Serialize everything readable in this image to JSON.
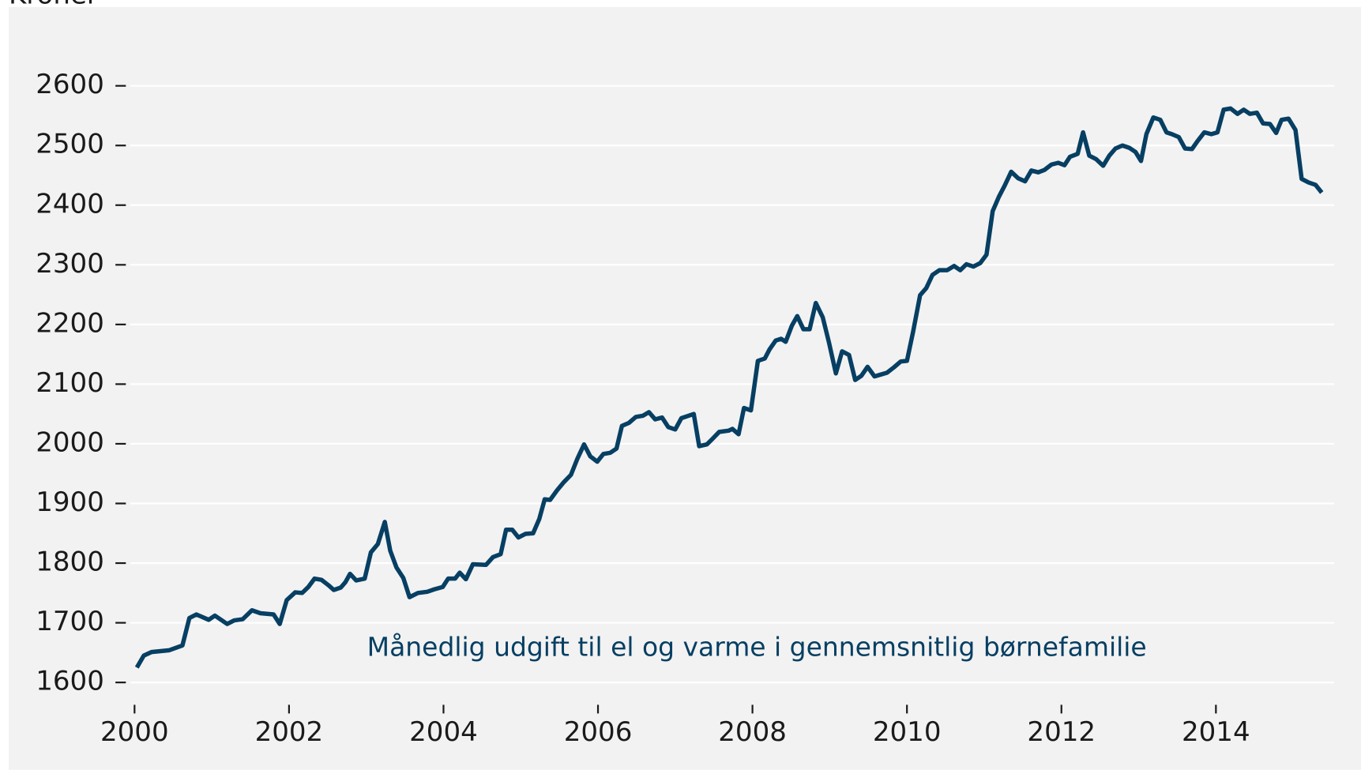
{
  "chart_data": {
    "type": "line",
    "y_label": "Kroner",
    "annotation": "Månedlig udgift til el og varme i gennemsnitlig børnefamilie",
    "x": [
      2000.03,
      2000.12,
      2000.22,
      2000.45,
      2000.62,
      2000.71,
      2000.8,
      2000.96,
      2001.04,
      2001.2,
      2001.29,
      2001.4,
      2001.52,
      2001.63,
      2001.8,
      2001.88,
      2001.97,
      2002.08,
      2002.17,
      2002.25,
      2002.33,
      2002.42,
      2002.51,
      2002.58,
      2002.67,
      2002.73,
      2002.79,
      2002.87,
      2002.98,
      2003.06,
      2003.15,
      2003.24,
      2003.31,
      2003.39,
      2003.48,
      2003.56,
      2003.67,
      2003.79,
      2003.88,
      2003.99,
      2004.06,
      2004.15,
      2004.21,
      2004.29,
      2004.38,
      2004.55,
      2004.64,
      2004.74,
      2004.81,
      2004.89,
      2004.97,
      2005.06,
      2005.16,
      2005.24,
      2005.31,
      2005.38,
      2005.47,
      2005.56,
      2005.65,
      2005.73,
      2005.82,
      2005.9,
      2005.99,
      2006.07,
      2006.16,
      2006.24,
      2006.31,
      2006.4,
      2006.49,
      2006.58,
      2006.66,
      2006.74,
      2006.83,
      2006.91,
      2007.0,
      2007.08,
      2007.24,
      2007.31,
      2007.41,
      2007.48,
      2007.57,
      2007.69,
      2007.74,
      2007.82,
      2007.89,
      2007.98,
      2008.07,
      2008.16,
      2008.22,
      2008.3,
      2008.37,
      2008.43,
      2008.51,
      2008.58,
      2008.66,
      2008.74,
      2008.82,
      2008.91,
      2008.99,
      2009.08,
      2009.16,
      2009.25,
      2009.33,
      2009.41,
      2009.49,
      2009.58,
      2009.66,
      2009.74,
      2009.83,
      2009.92,
      2010.0,
      2010.08,
      2010.17,
      2010.25,
      2010.33,
      2010.42,
      2010.52,
      2010.61,
      2010.69,
      2010.77,
      2010.86,
      2010.95,
      2011.03,
      2011.11,
      2011.19,
      2011.27,
      2011.35,
      2011.44,
      2011.53,
      2011.61,
      2011.7,
      2011.78,
      2011.87,
      2011.96,
      2012.04,
      2012.11,
      2012.21,
      2012.28,
      2012.36,
      2012.45,
      2012.54,
      2012.62,
      2012.7,
      2012.79,
      2012.88,
      2012.96,
      2013.03,
      2013.1,
      2013.19,
      2013.28,
      2013.36,
      2013.43,
      2013.52,
      2013.6,
      2013.69,
      2013.76,
      2013.85,
      2013.94,
      2014.02,
      2014.1,
      2014.19,
      2014.28,
      2014.36,
      2014.44,
      2014.53,
      2014.61,
      2014.7,
      2014.78,
      2014.85,
      2014.94,
      2015.03,
      2015.11,
      2015.2,
      2015.29,
      2015.37
    ],
    "series": [
      {
        "name": "Månedlig udgift",
        "color": "#073f63",
        "values": [
          1625,
          1645,
          1651,
          1654,
          1662,
          1708,
          1714,
          1705,
          1712,
          1698,
          1704,
          1706,
          1721,
          1716,
          1714,
          1698,
          1738,
          1751,
          1750,
          1760,
          1774,
          1772,
          1763,
          1755,
          1759,
          1768,
          1782,
          1771,
          1774,
          1818,
          1832,
          1869,
          1821,
          1793,
          1775,
          1743,
          1750,
          1752,
          1756,
          1760,
          1774,
          1774,
          1784,
          1773,
          1798,
          1797,
          1810,
          1815,
          1856,
          1856,
          1843,
          1849,
          1850,
          1874,
          1907,
          1906,
          1922,
          1936,
          1948,
          1974,
          1999,
          1979,
          1970,
          1983,
          1985,
          1992,
          2030,
          2035,
          2045,
          2047,
          2053,
          2041,
          2044,
          2028,
          2024,
          2043,
          2050,
          1996,
          1999,
          2008,
          2020,
          2022,
          2025,
          2016,
          2060,
          2056,
          2139,
          2143,
          2158,
          2173,
          2176,
          2171,
          2198,
          2214,
          2192,
          2192,
          2236,
          2212,
          2170,
          2118,
          2155,
          2149,
          2107,
          2114,
          2129,
          2113,
          2116,
          2119,
          2128,
          2138,
          2139,
          2188,
          2249,
          2261,
          2283,
          2291,
          2291,
          2298,
          2291,
          2301,
          2297,
          2303,
          2317,
          2390,
          2414,
          2434,
          2456,
          2445,
          2440,
          2458,
          2455,
          2459,
          2468,
          2471,
          2467,
          2481,
          2486,
          2522,
          2483,
          2477,
          2466,
          2483,
          2495,
          2500,
          2496,
          2489,
          2474,
          2519,
          2547,
          2543,
          2522,
          2519,
          2514,
          2495,
          2494,
          2507,
          2522,
          2519,
          2522,
          2560,
          2562,
          2553,
          2560,
          2553,
          2555,
          2537,
          2536,
          2521,
          2543,
          2545,
          2526,
          2444,
          2438,
          2434,
          2421
        ]
      }
    ],
    "xlim": [
      2000,
      2015.53
    ],
    "xticks": [
      2000,
      2002,
      2004,
      2006,
      2008,
      2010,
      2012,
      2014
    ],
    "ylim": [
      1580,
      2700
    ],
    "yticks": [
      1600,
      1700,
      1800,
      1900,
      2000,
      2100,
      2200,
      2300,
      2400,
      2500,
      2600
    ],
    "grid": true
  }
}
